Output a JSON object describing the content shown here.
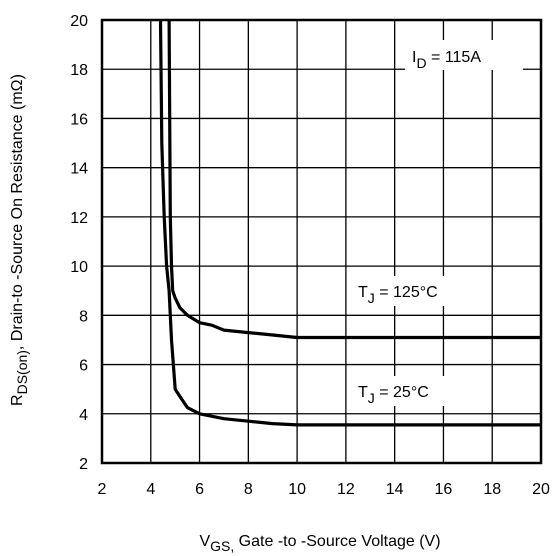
{
  "chart_data": {
    "type": "line",
    "x_label_main": "V",
    "x_label_sub": "GS,",
    "x_label_rest": " Gate -to -Source Voltage  (V)",
    "y_label_main": "R",
    "y_label_sub": "DS(on)",
    "y_label_rest": ",  Drain-to -Source On Resistance (mΩ)",
    "xlim": [
      2,
      20
    ],
    "ylim": [
      2,
      20
    ],
    "x_ticks": [
      2,
      4,
      6,
      8,
      10,
      12,
      14,
      16,
      18,
      20
    ],
    "y_ticks": [
      2,
      4,
      6,
      8,
      10,
      12,
      14,
      16,
      18,
      20
    ],
    "grid": true,
    "annotation_id": {
      "main": "I",
      "sub": "D",
      "rest": " = 115A"
    },
    "series": [
      {
        "label_main": "T",
        "label_sub": "J",
        "label_rest": " = 125°C",
        "x": [
          4.75,
          4.8,
          4.85,
          4.9,
          5.0,
          5.2,
          5.5,
          6.0,
          6.5,
          7.0,
          8.0,
          9.0,
          10.0,
          12.0,
          14.0,
          16.0,
          18.0,
          20.0
        ],
        "y": [
          20.0,
          12.0,
          10.0,
          9.0,
          8.7,
          8.3,
          8.0,
          7.7,
          7.6,
          7.4,
          7.3,
          7.2,
          7.1,
          7.1,
          7.1,
          7.1,
          7.1,
          7.1
        ]
      },
      {
        "label_main": "T",
        "label_sub": "J",
        "label_rest": " = 25°C",
        "x": [
          4.4,
          4.45,
          4.55,
          4.65,
          4.75,
          4.85,
          5.0,
          5.2,
          5.5,
          6.0,
          7.0,
          8.0,
          9.0,
          10.0,
          12.0,
          14.0,
          16.0,
          18.0,
          20.0
        ],
        "y": [
          20.0,
          15.0,
          12.0,
          10.0,
          9.0,
          7.0,
          5.0,
          4.7,
          4.25,
          4.0,
          3.8,
          3.7,
          3.6,
          3.55,
          3.55,
          3.55,
          3.55,
          3.55,
          3.55
        ]
      }
    ]
  }
}
